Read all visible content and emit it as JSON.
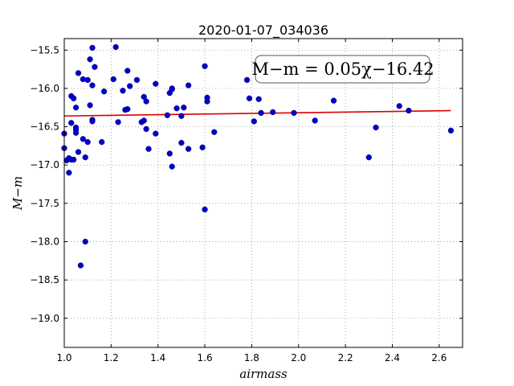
{
  "chart_data": {
    "type": "scatter",
    "title": "2020-01-07_034036",
    "xlabel": "airmass",
    "ylabel": "M−m",
    "xlim": [
      1.0,
      2.7
    ],
    "ylim": [
      -15.35,
      -19.38
    ],
    "y_inverted": true,
    "xticks": [
      1.0,
      1.2,
      1.4,
      1.6,
      1.8,
      2.0,
      2.2,
      2.4,
      2.6
    ],
    "xtick_labels": [
      "1.0",
      "1.2",
      "1.4",
      "1.6",
      "1.8",
      "2.0",
      "2.2",
      "2.4",
      "2.6"
    ],
    "yticks": [
      -15.5,
      -16.0,
      -16.5,
      -17.0,
      -17.5,
      -18.0,
      -18.5,
      -19.0
    ],
    "ytick_labels": [
      "−15.5",
      "−16.0",
      "−16.5",
      "−17.0",
      "−17.5",
      "−18.0",
      "−18.5",
      "−19.0"
    ],
    "grid": true,
    "annotation": "M−m = 0.05χ−16.42",
    "point_color": "#0000cc",
    "fit_color": "#dd0000",
    "series": [
      {
        "kind": "points",
        "x": [
          1.0,
          1.0,
          1.01,
          1.02,
          1.02,
          1.03,
          1.03,
          1.03,
          1.04,
          1.04,
          1.05,
          1.05,
          1.05,
          1.05,
          1.06,
          1.06,
          1.07,
          1.08,
          1.08,
          1.09,
          1.09,
          1.1,
          1.1,
          1.11,
          1.11,
          1.12,
          1.12,
          1.12,
          1.12,
          1.13,
          1.16,
          1.17,
          1.21,
          1.22,
          1.23,
          1.25,
          1.26,
          1.27,
          1.27,
          1.28,
          1.31,
          1.33,
          1.34,
          1.34,
          1.35,
          1.35,
          1.36,
          1.39,
          1.39,
          1.44,
          1.45,
          1.45,
          1.46,
          1.46,
          1.46,
          1.48,
          1.5,
          1.5,
          1.51,
          1.53,
          1.53,
          1.59,
          1.6,
          1.6,
          1.61,
          1.61,
          1.64,
          1.78,
          1.79,
          1.81,
          1.83,
          1.84,
          1.89,
          1.98,
          2.07,
          2.15,
          2.3,
          2.33,
          2.43,
          2.47,
          2.65
        ],
        "y": [
          -16.59,
          -16.78,
          -16.94,
          -17.1,
          -16.91,
          -16.1,
          -16.45,
          -16.93,
          -16.13,
          -16.93,
          -16.25,
          -16.51,
          -16.54,
          -16.58,
          -15.8,
          -16.83,
          -18.31,
          -15.88,
          -16.66,
          -18.0,
          -16.9,
          -15.89,
          -16.7,
          -15.62,
          -16.22,
          -15.47,
          -15.96,
          -16.41,
          -16.43,
          -15.72,
          -16.7,
          -16.04,
          -15.88,
          -15.46,
          -16.44,
          -16.03,
          -16.28,
          -15.77,
          -16.27,
          -15.97,
          -15.89,
          -16.44,
          -16.11,
          -16.42,
          -16.53,
          -16.17,
          -16.79,
          -15.94,
          -16.59,
          -16.35,
          -16.06,
          -16.85,
          -16.01,
          -16.0,
          -17.02,
          -16.26,
          -16.36,
          -16.71,
          -16.25,
          -15.96,
          -16.79,
          -16.77,
          -15.71,
          -17.58,
          -16.12,
          -16.17,
          -16.57,
          -15.89,
          -16.13,
          -16.43,
          -16.14,
          -16.32,
          -16.31,
          -16.32,
          -16.42,
          -16.16,
          -16.9,
          -16.51,
          -16.23,
          -16.29,
          -16.55
        ]
      },
      {
        "kind": "fit",
        "x": [
          1.0,
          2.65
        ],
        "y": [
          -16.36,
          -16.29
        ]
      }
    ]
  }
}
